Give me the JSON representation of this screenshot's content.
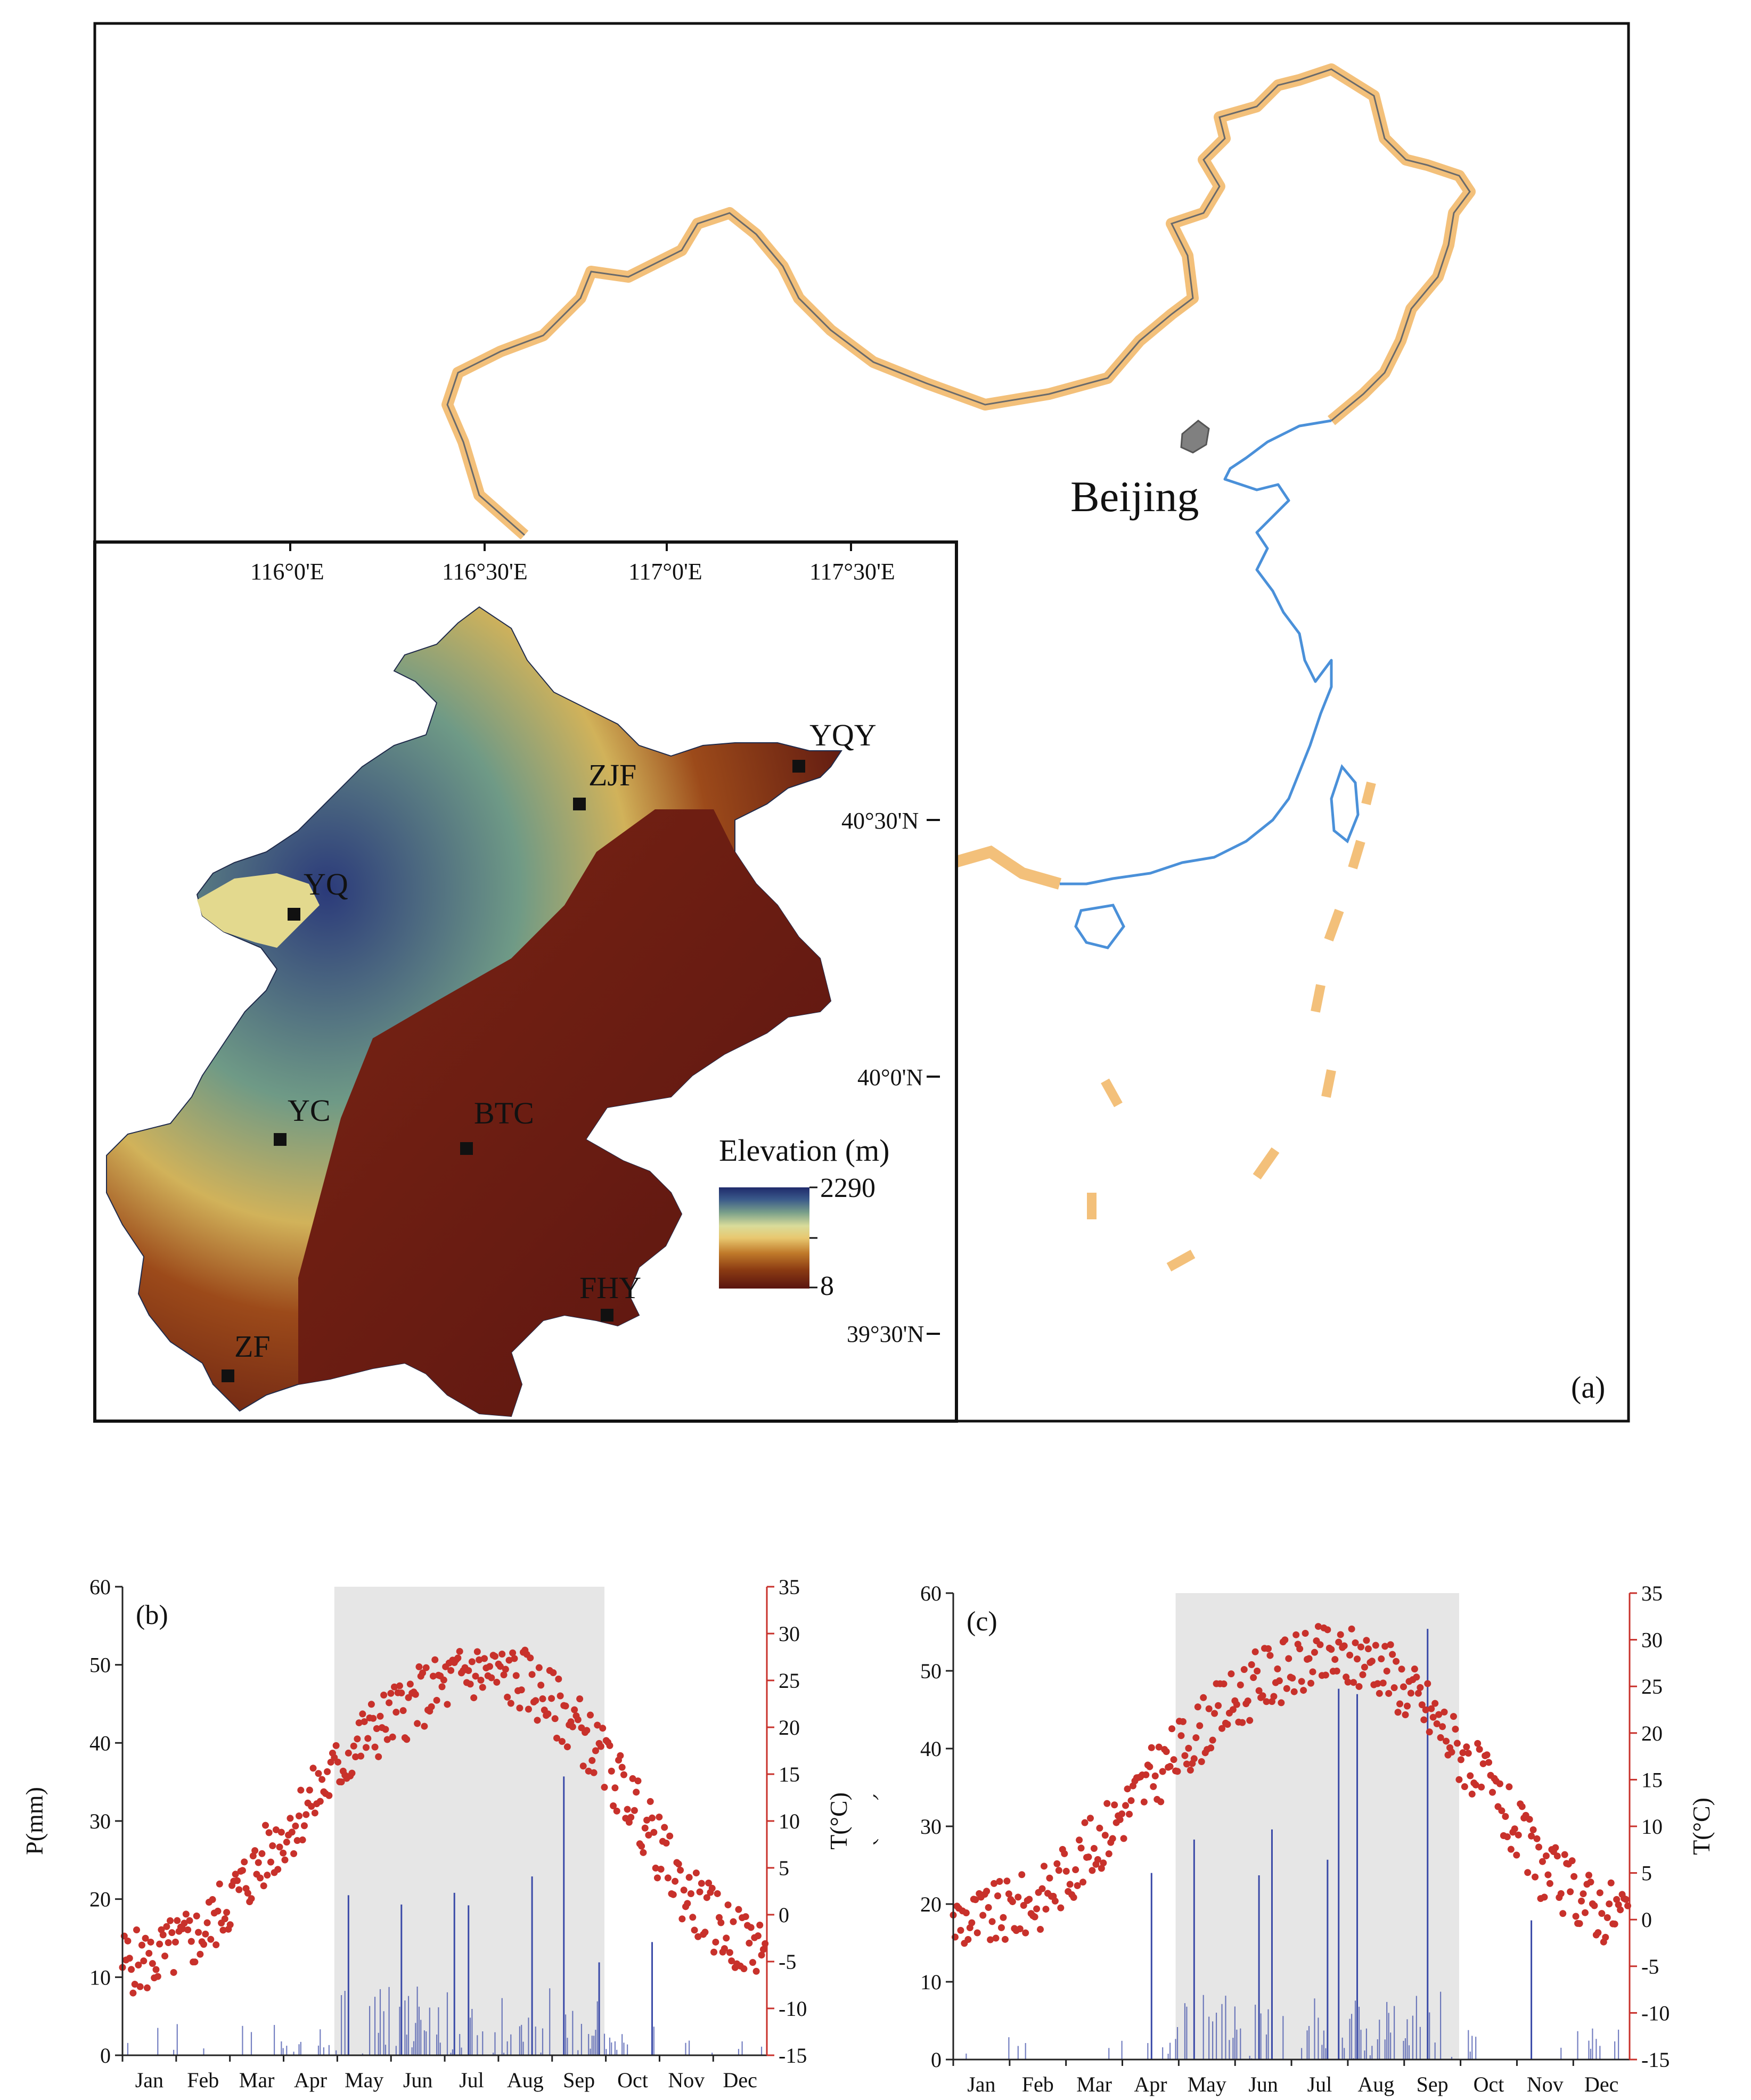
{
  "panel_a": {
    "panel_label": "(a)",
    "beijing_label": "Beijing",
    "lon_ticks": [
      "116°0'E",
      "116°30'E",
      "117°0'E",
      "117°30'E"
    ],
    "lat_ticks": [
      "40°30'N",
      "40°0'N",
      "39°30'N"
    ],
    "stations": [
      {
        "code": "YQY"
      },
      {
        "code": "ZJF"
      },
      {
        "code": "YQ"
      },
      {
        "code": "YC"
      },
      {
        "code": "BTC"
      },
      {
        "code": "FHY"
      },
      {
        "code": "ZF"
      }
    ],
    "legend": {
      "title": "Elevation (m)",
      "max": "2290",
      "min": "8"
    },
    "colors": {
      "border": "#f3c07a",
      "coast": "#4a90d9",
      "beijing": "#808080",
      "elev_low": "#5a1510",
      "elev_high": "#1f2a6b"
    }
  },
  "chart_data": [
    {
      "panel": "(b)",
      "type": "bar+scatter",
      "x_labels": [
        "Jan",
        "Feb",
        "Mar",
        "Apr",
        "May",
        "Jun",
        "Jul",
        "Aug",
        "Sep",
        "Oct",
        "Nov",
        "Dec"
      ],
      "y_left": {
        "label": "P(mm)",
        "range": [
          0,
          60
        ],
        "ticks": [
          "0",
          "10",
          "20",
          "30",
          "40",
          "50",
          "60"
        ]
      },
      "y_right": {
        "label": "T(°C)",
        "range": [
          -15,
          35
        ],
        "ticks": [
          "-15",
          "-10",
          "-5",
          "0",
          "5",
          "10",
          "15",
          "20",
          "25",
          "30",
          "35"
        ]
      },
      "growing_season_shade": {
        "from_day": 120,
        "to_day": 273
      },
      "temperature_monthly_mean": [
        -5,
        -2,
        5,
        12,
        19,
        23,
        26,
        25,
        20,
        12,
        2,
        -3
      ],
      "precipitation_peaks_mm": [
        {
          "day": 128,
          "value": 20.5
        },
        {
          "day": 158,
          "value": 19.3
        },
        {
          "day": 188,
          "value": 20.8
        },
        {
          "day": 196,
          "value": 19.2
        },
        {
          "day": 232,
          "value": 22.9
        },
        {
          "day": 250,
          "value": 35.7
        },
        {
          "day": 270,
          "value": 11.9
        },
        {
          "day": 300,
          "value": 14.5
        }
      ],
      "colors": {
        "temp": "#c8312b",
        "precip": "#3a4aa8",
        "shade": "#e6e6e6",
        "right_axis": "#c8312b"
      }
    },
    {
      "panel": "(c)",
      "type": "bar+scatter",
      "x_labels": [
        "Jan",
        "Feb",
        "Mar",
        "Apr",
        "May",
        "Jun",
        "Jul",
        "Aug",
        "Sep",
        "Oct",
        "Nov",
        "Dec"
      ],
      "y_left": {
        "label": "P(mm)",
        "range": [
          0,
          60
        ],
        "ticks": [
          "0",
          "10",
          "20",
          "30",
          "40",
          "50",
          "60"
        ]
      },
      "y_right": {
        "label": "T(°C)",
        "range": [
          -15,
          35
        ],
        "ticks": [
          "-15",
          "-10",
          "-5",
          "0",
          "5",
          "10",
          "15",
          "20",
          "25",
          "30",
          "35"
        ]
      },
      "growing_season_shade": {
        "from_day": 120,
        "to_day": 273
      },
      "temperature_monthly_mean": [
        0,
        2,
        8,
        15,
        21,
        26,
        28,
        28,
        22,
        14,
        5,
        1
      ],
      "precipitation_peaks_mm": [
        {
          "day": 107,
          "value": 24.0
        },
        {
          "day": 130,
          "value": 28.3
        },
        {
          "day": 165,
          "value": 23.7
        },
        {
          "day": 172,
          "value": 29.6
        },
        {
          "day": 202,
          "value": 25.7
        },
        {
          "day": 208,
          "value": 47.7
        },
        {
          "day": 218,
          "value": 47.0
        },
        {
          "day": 256,
          "value": 55.4
        },
        {
          "day": 312,
          "value": 17.9
        }
      ],
      "colors": {
        "temp": "#c8312b",
        "precip": "#3a4aa8",
        "shade": "#e6e6e6",
        "right_axis": "#c8312b"
      }
    }
  ]
}
